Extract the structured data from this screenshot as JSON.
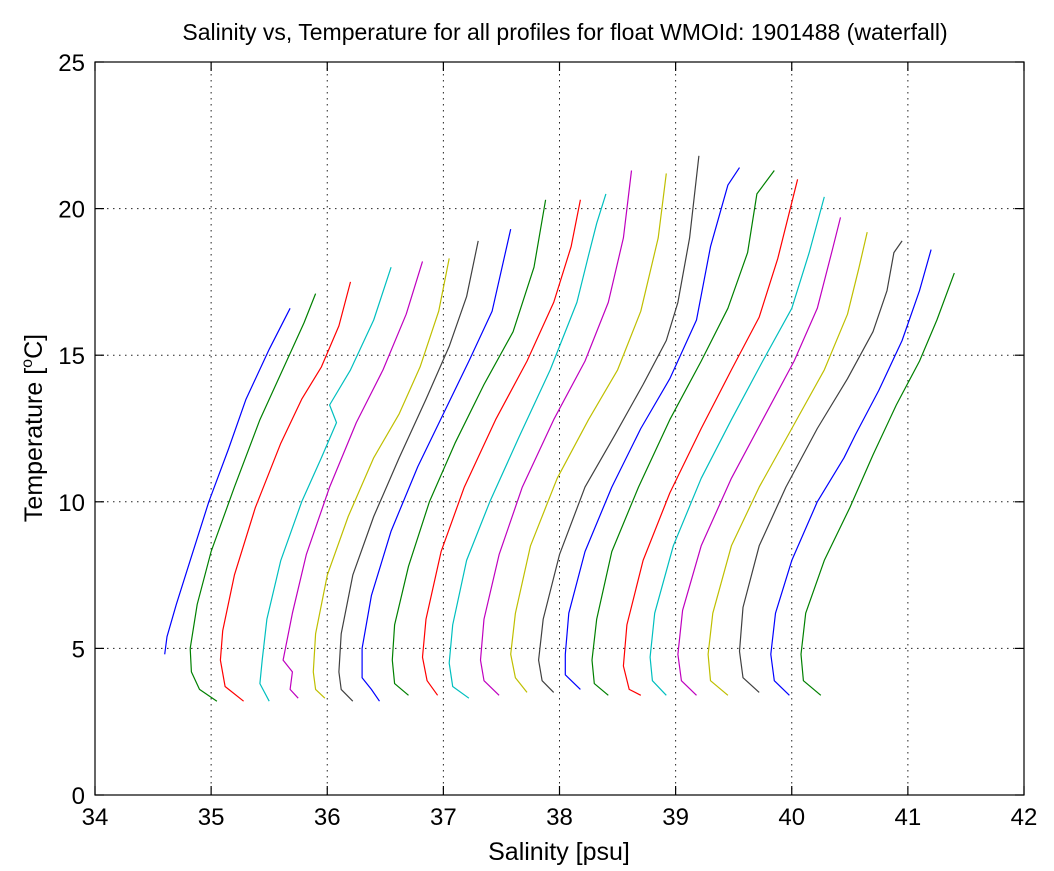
{
  "chart_data": {
    "type": "line",
    "title": "Salinity vs, Temperature for all profiles for float WMOId: 1901488 (waterfall)",
    "xlabel": "Salinity [psu]",
    "ylabel_main": "Temperature [",
    "ylabel_sup": "o",
    "ylabel_end": "C]",
    "xlim": [
      34,
      42
    ],
    "ylim": [
      0,
      25
    ],
    "xticks": [
      34,
      35,
      36,
      37,
      38,
      39,
      40,
      41,
      42
    ],
    "yticks": [
      0,
      5,
      10,
      15,
      20,
      25
    ],
    "grid": true,
    "legend": "none",
    "colors": [
      "#0000ff",
      "#008000",
      "#ff0000",
      "#00bfbf",
      "#bf00bf",
      "#bfbf00",
      "#404040"
    ],
    "series": [
      {
        "color": "#0000ff",
        "points": [
          [
            34.6,
            4.8
          ],
          [
            34.62,
            5.4
          ],
          [
            34.7,
            6.5
          ],
          [
            34.82,
            8.0
          ],
          [
            34.98,
            10.0
          ],
          [
            35.15,
            11.8
          ],
          [
            35.3,
            13.5
          ],
          [
            35.5,
            15.2
          ],
          [
            35.68,
            16.6
          ]
        ]
      },
      {
        "color": "#008000",
        "points": [
          [
            35.05,
            3.2
          ],
          [
            34.9,
            3.6
          ],
          [
            34.83,
            4.2
          ],
          [
            34.82,
            5.0
          ],
          [
            34.88,
            6.5
          ],
          [
            35.0,
            8.3
          ],
          [
            35.2,
            10.5
          ],
          [
            35.42,
            12.8
          ],
          [
            35.65,
            14.8
          ],
          [
            35.8,
            16.1
          ],
          [
            35.9,
            17.1
          ]
        ]
      },
      {
        "color": "#ff0000",
        "points": [
          [
            35.28,
            3.2
          ],
          [
            35.12,
            3.7
          ],
          [
            35.08,
            4.6
          ],
          [
            35.1,
            5.6
          ],
          [
            35.2,
            7.5
          ],
          [
            35.38,
            9.8
          ],
          [
            35.6,
            12.0
          ],
          [
            35.78,
            13.5
          ],
          [
            35.95,
            14.6
          ],
          [
            36.1,
            16.0
          ],
          [
            36.2,
            17.5
          ]
        ]
      },
      {
        "color": "#00bfbf",
        "points": [
          [
            35.5,
            3.2
          ],
          [
            35.42,
            3.8
          ],
          [
            35.44,
            4.6
          ],
          [
            35.48,
            6.0
          ],
          [
            35.6,
            8.0
          ],
          [
            35.78,
            10.0
          ],
          [
            35.95,
            11.5
          ],
          [
            36.08,
            12.7
          ],
          [
            36.02,
            13.3
          ],
          [
            36.2,
            14.5
          ],
          [
            36.4,
            16.2
          ],
          [
            36.55,
            18.0
          ]
        ]
      },
      {
        "color": "#bf00bf",
        "points": [
          [
            35.75,
            3.3
          ],
          [
            35.68,
            3.6
          ],
          [
            35.7,
            4.2
          ],
          [
            35.62,
            4.6
          ],
          [
            35.7,
            6.2
          ],
          [
            35.82,
            8.2
          ],
          [
            36.02,
            10.5
          ],
          [
            36.25,
            12.7
          ],
          [
            36.48,
            14.5
          ],
          [
            36.68,
            16.4
          ],
          [
            36.82,
            18.2
          ]
        ]
      },
      {
        "color": "#bfbf00",
        "points": [
          [
            35.98,
            3.3
          ],
          [
            35.9,
            3.6
          ],
          [
            35.88,
            4.2
          ],
          [
            35.9,
            5.5
          ],
          [
            36.0,
            7.5
          ],
          [
            36.18,
            9.5
          ],
          [
            36.4,
            11.5
          ],
          [
            36.62,
            13.0
          ],
          [
            36.8,
            14.6
          ],
          [
            36.96,
            16.5
          ],
          [
            37.05,
            18.3
          ]
        ]
      },
      {
        "color": "#404040",
        "points": [
          [
            36.22,
            3.2
          ],
          [
            36.12,
            3.6
          ],
          [
            36.1,
            4.2
          ],
          [
            36.12,
            5.5
          ],
          [
            36.22,
            7.5
          ],
          [
            36.4,
            9.5
          ],
          [
            36.62,
            11.5
          ],
          [
            36.85,
            13.5
          ],
          [
            37.05,
            15.3
          ],
          [
            37.2,
            17.0
          ],
          [
            37.3,
            18.9
          ]
        ]
      },
      {
        "color": "#0000ff",
        "points": [
          [
            36.45,
            3.2
          ],
          [
            36.38,
            3.6
          ],
          [
            36.3,
            4.0
          ],
          [
            36.3,
            5.0
          ],
          [
            36.38,
            6.8
          ],
          [
            36.55,
            9.0
          ],
          [
            36.78,
            11.2
          ],
          [
            37.0,
            13.0
          ],
          [
            37.22,
            14.8
          ],
          [
            37.42,
            16.5
          ],
          [
            37.58,
            19.3
          ]
        ]
      },
      {
        "color": "#008000",
        "points": [
          [
            36.7,
            3.4
          ],
          [
            36.58,
            3.8
          ],
          [
            36.56,
            4.6
          ],
          [
            36.58,
            5.8
          ],
          [
            36.7,
            7.8
          ],
          [
            36.88,
            10.0
          ],
          [
            37.1,
            12.0
          ],
          [
            37.35,
            14.0
          ],
          [
            37.6,
            15.8
          ],
          [
            37.78,
            18.0
          ],
          [
            37.88,
            20.3
          ]
        ]
      },
      {
        "color": "#ff0000",
        "points": [
          [
            36.95,
            3.4
          ],
          [
            36.86,
            3.9
          ],
          [
            36.82,
            4.7
          ],
          [
            36.85,
            6.0
          ],
          [
            36.98,
            8.3
          ],
          [
            37.18,
            10.5
          ],
          [
            37.45,
            12.8
          ],
          [
            37.72,
            14.8
          ],
          [
            37.95,
            16.8
          ],
          [
            38.1,
            18.7
          ],
          [
            38.18,
            20.3
          ]
        ]
      },
      {
        "color": "#00bfbf",
        "points": [
          [
            37.22,
            3.3
          ],
          [
            37.08,
            3.7
          ],
          [
            37.05,
            4.5
          ],
          [
            37.08,
            5.8
          ],
          [
            37.2,
            8.0
          ],
          [
            37.4,
            10.0
          ],
          [
            37.65,
            12.2
          ],
          [
            37.92,
            14.5
          ],
          [
            38.15,
            16.8
          ],
          [
            38.25,
            18.4
          ],
          [
            38.32,
            19.5
          ],
          [
            38.4,
            20.5
          ]
        ]
      },
      {
        "color": "#bf00bf",
        "points": [
          [
            37.48,
            3.4
          ],
          [
            37.35,
            3.9
          ],
          [
            37.32,
            4.6
          ],
          [
            37.35,
            6.0
          ],
          [
            37.48,
            8.2
          ],
          [
            37.68,
            10.5
          ],
          [
            37.95,
            12.8
          ],
          [
            38.22,
            14.8
          ],
          [
            38.42,
            16.8
          ],
          [
            38.55,
            19.0
          ],
          [
            38.62,
            21.3
          ]
        ]
      },
      {
        "color": "#bfbf00",
        "points": [
          [
            37.72,
            3.5
          ],
          [
            37.62,
            4.0
          ],
          [
            37.58,
            4.8
          ],
          [
            37.62,
            6.2
          ],
          [
            37.75,
            8.5
          ],
          [
            37.98,
            10.8
          ],
          [
            38.25,
            12.8
          ],
          [
            38.5,
            14.5
          ],
          [
            38.7,
            16.5
          ],
          [
            38.85,
            19.0
          ],
          [
            38.92,
            21.2
          ]
        ]
      },
      {
        "color": "#404040",
        "points": [
          [
            37.95,
            3.5
          ],
          [
            37.85,
            3.9
          ],
          [
            37.82,
            4.6
          ],
          [
            37.86,
            6.0
          ],
          [
            38.0,
            8.2
          ],
          [
            38.22,
            10.5
          ],
          [
            38.48,
            12.3
          ],
          [
            38.72,
            14.0
          ],
          [
            38.92,
            15.5
          ],
          [
            39.02,
            16.8
          ],
          [
            39.12,
            19.0
          ],
          [
            39.2,
            21.8
          ]
        ]
      },
      {
        "color": "#0000ff",
        "points": [
          [
            38.18,
            3.6
          ],
          [
            38.05,
            4.1
          ],
          [
            38.05,
            4.8
          ],
          [
            38.08,
            6.2
          ],
          [
            38.22,
            8.3
          ],
          [
            38.45,
            10.5
          ],
          [
            38.7,
            12.5
          ],
          [
            38.95,
            14.2
          ],
          [
            39.18,
            16.2
          ],
          [
            39.3,
            18.7
          ],
          [
            39.45,
            20.8
          ],
          [
            39.55,
            21.4
          ]
        ]
      },
      {
        "color": "#008000",
        "points": [
          [
            38.42,
            3.4
          ],
          [
            38.3,
            3.8
          ],
          [
            38.28,
            4.6
          ],
          [
            38.32,
            6.0
          ],
          [
            38.45,
            8.3
          ],
          [
            38.68,
            10.5
          ],
          [
            38.95,
            12.8
          ],
          [
            39.22,
            14.8
          ],
          [
            39.45,
            16.6
          ],
          [
            39.62,
            18.5
          ],
          [
            39.7,
            20.5
          ],
          [
            39.85,
            21.3
          ]
        ]
      },
      {
        "color": "#ff0000",
        "points": [
          [
            38.7,
            3.4
          ],
          [
            38.6,
            3.6
          ],
          [
            38.55,
            4.4
          ],
          [
            38.58,
            5.8
          ],
          [
            38.72,
            8.0
          ],
          [
            38.95,
            10.3
          ],
          [
            39.22,
            12.5
          ],
          [
            39.48,
            14.5
          ],
          [
            39.72,
            16.3
          ],
          [
            39.88,
            18.3
          ],
          [
            40.05,
            21.0
          ]
        ]
      },
      {
        "color": "#00bfbf",
        "points": [
          [
            38.92,
            3.4
          ],
          [
            38.8,
            3.9
          ],
          [
            38.78,
            4.7
          ],
          [
            38.82,
            6.2
          ],
          [
            38.98,
            8.5
          ],
          [
            39.22,
            10.8
          ],
          [
            39.48,
            12.8
          ],
          [
            39.75,
            14.8
          ],
          [
            40.0,
            16.6
          ],
          [
            40.15,
            18.5
          ],
          [
            40.28,
            20.4
          ]
        ]
      },
      {
        "color": "#bf00bf",
        "points": [
          [
            39.18,
            3.4
          ],
          [
            39.05,
            3.9
          ],
          [
            39.02,
            4.8
          ],
          [
            39.06,
            6.3
          ],
          [
            39.22,
            8.5
          ],
          [
            39.48,
            10.8
          ],
          [
            39.75,
            12.8
          ],
          [
            40.02,
            14.8
          ],
          [
            40.22,
            16.6
          ],
          [
            40.35,
            18.6
          ],
          [
            40.42,
            19.7
          ]
        ]
      },
      {
        "color": "#bfbf00",
        "points": [
          [
            39.45,
            3.4
          ],
          [
            39.3,
            3.9
          ],
          [
            39.28,
            4.8
          ],
          [
            39.32,
            6.2
          ],
          [
            39.48,
            8.5
          ],
          [
            39.72,
            10.5
          ],
          [
            40.0,
            12.5
          ],
          [
            40.28,
            14.5
          ],
          [
            40.48,
            16.4
          ],
          [
            40.58,
            18.0
          ],
          [
            40.65,
            19.2
          ]
        ]
      },
      {
        "color": "#404040",
        "points": [
          [
            39.72,
            3.5
          ],
          [
            39.58,
            4.0
          ],
          [
            39.55,
            4.9
          ],
          [
            39.58,
            6.4
          ],
          [
            39.72,
            8.5
          ],
          [
            39.95,
            10.5
          ],
          [
            40.22,
            12.5
          ],
          [
            40.48,
            14.2
          ],
          [
            40.7,
            15.8
          ],
          [
            40.82,
            17.2
          ],
          [
            40.88,
            18.5
          ],
          [
            40.95,
            18.9
          ]
        ]
      },
      {
        "color": "#0000ff",
        "points": [
          [
            39.98,
            3.4
          ],
          [
            39.85,
            3.9
          ],
          [
            39.82,
            4.8
          ],
          [
            39.86,
            6.2
          ],
          [
            40.0,
            8.0
          ],
          [
            40.22,
            10.0
          ],
          [
            40.45,
            11.5
          ],
          [
            40.55,
            12.3
          ],
          [
            40.75,
            13.8
          ],
          [
            40.95,
            15.5
          ],
          [
            41.1,
            17.2
          ],
          [
            41.2,
            18.6
          ]
        ]
      },
      {
        "color": "#008000",
        "points": [
          [
            40.25,
            3.4
          ],
          [
            40.1,
            3.9
          ],
          [
            40.08,
            4.8
          ],
          [
            40.12,
            6.2
          ],
          [
            40.28,
            8.0
          ],
          [
            40.5,
            9.8
          ],
          [
            40.7,
            11.6
          ],
          [
            40.9,
            13.3
          ],
          [
            41.1,
            14.8
          ],
          [
            41.25,
            16.2
          ],
          [
            41.4,
            17.8
          ]
        ]
      }
    ]
  }
}
